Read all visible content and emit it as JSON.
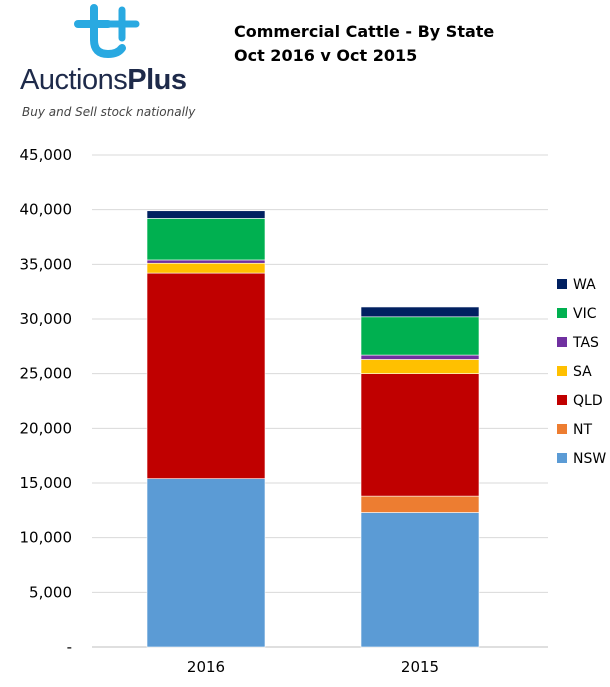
{
  "logo": {
    "word_main": "Auctions",
    "word_plus": "Plus",
    "tagline": "Buy and Sell stock nationally"
  },
  "chart_data": {
    "type": "bar",
    "stacked": true,
    "title": "Commercial Cattle - By State",
    "subtitle": "Oct 2016 v Oct 2015",
    "categories": [
      "2016",
      "2015"
    ],
    "series": [
      {
        "name": "NSW",
        "color": "#5b9bd5",
        "values": [
          15400,
          12300
        ]
      },
      {
        "name": "NT",
        "color": "#ed7d31",
        "values": [
          0,
          1500
        ]
      },
      {
        "name": "QLD",
        "color": "#c00000",
        "values": [
          18800,
          11200
        ]
      },
      {
        "name": "SA",
        "color": "#ffc000",
        "values": [
          900,
          1300
        ]
      },
      {
        "name": "TAS",
        "color": "#7030a0",
        "values": [
          300,
          400
        ]
      },
      {
        "name": "VIC",
        "color": "#00b050",
        "values": [
          3800,
          3500
        ]
      },
      {
        "name": "WA",
        "color": "#002060",
        "values": [
          700,
          900
        ]
      }
    ],
    "ylim": [
      0,
      45000
    ],
    "yticks": [
      0,
      5000,
      10000,
      15000,
      20000,
      25000,
      30000,
      35000,
      40000,
      45000
    ],
    "ytick_labels": [
      "-",
      "5,000",
      "10,000",
      "15,000",
      "20,000",
      "25,000",
      "30,000",
      "35,000",
      "40,000",
      "45,000"
    ],
    "grid": true,
    "legend": "right"
  }
}
